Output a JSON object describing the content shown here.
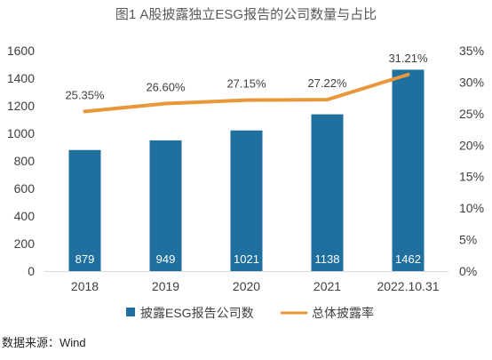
{
  "source": "数据来源：Wind",
  "chart_data": {
    "type": "bar",
    "title": "图1 A股披露独立ESG报告的公司数量与占比",
    "categories": [
      "2018",
      "2019",
      "2020",
      "2021",
      "2022.10.31"
    ],
    "series": [
      {
        "name": "披露ESG报告公司数",
        "type": "bar",
        "axis": "left",
        "color": "#1F6F9F",
        "values": [
          879,
          949,
          1021,
          1138,
          1462
        ]
      },
      {
        "name": "总体披露率",
        "type": "line",
        "axis": "right",
        "color": "#E8973A",
        "values": [
          25.35,
          26.6,
          27.15,
          27.22,
          31.21
        ],
        "data_labels": [
          "25.35%",
          "26.60%",
          "27.15%",
          "27.22%",
          "31.21%"
        ]
      }
    ],
    "y_left": {
      "range": [
        0,
        1600
      ],
      "ticks": [
        "0",
        "200",
        "400",
        "600",
        "800",
        "1000",
        "1200",
        "1400",
        "1600"
      ]
    },
    "y_right": {
      "range": [
        0,
        35
      ],
      "ticks": [
        "0%",
        "5%",
        "10%",
        "15%",
        "20%",
        "25%",
        "30%",
        "35%"
      ]
    },
    "grid": false,
    "legend": "bottom"
  }
}
